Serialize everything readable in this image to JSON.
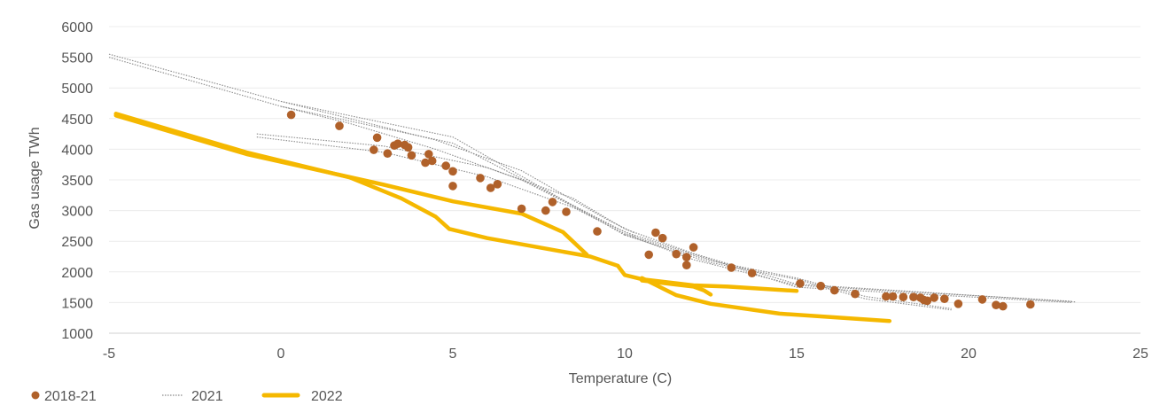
{
  "chart_data": {
    "type": "scatter",
    "title": "",
    "xlabel": "Temperature  (C)",
    "ylabel": "Gas usage TWh",
    "xlim": [
      -5,
      25
    ],
    "ylim": [
      1000,
      6000
    ],
    "x_ticks": [
      "-5",
      "0",
      "5",
      "10",
      "15",
      "20",
      "25"
    ],
    "y_ticks": [
      "1000",
      "1500",
      "2000",
      "2500",
      "3000",
      "3500",
      "4000",
      "4500",
      "5000",
      "5500",
      "6000"
    ],
    "grid": "horizontal",
    "legend_position": "bottom-left",
    "series": [
      {
        "name": "2018-21",
        "kind": "points",
        "color": "#b0612a",
        "points": [
          [
            0.3,
            4560
          ],
          [
            1.7,
            4380
          ],
          [
            2.7,
            3990
          ],
          [
            2.8,
            4190
          ],
          [
            3.1,
            3930
          ],
          [
            3.3,
            4060
          ],
          [
            3.4,
            4090
          ],
          [
            3.6,
            4070
          ],
          [
            3.7,
            4030
          ],
          [
            3.8,
            3900
          ],
          [
            4.2,
            3780
          ],
          [
            4.3,
            3920
          ],
          [
            4.4,
            3810
          ],
          [
            4.8,
            3730
          ],
          [
            5.0,
            3640
          ],
          [
            5.0,
            3400
          ],
          [
            5.8,
            3530
          ],
          [
            6.1,
            3370
          ],
          [
            6.3,
            3430
          ],
          [
            7.0,
            3030
          ],
          [
            7.7,
            3000
          ],
          [
            7.9,
            3140
          ],
          [
            8.3,
            2980
          ],
          [
            9.2,
            2660
          ],
          [
            10.7,
            2280
          ],
          [
            10.9,
            2640
          ],
          [
            11.1,
            2550
          ],
          [
            11.5,
            2290
          ],
          [
            11.8,
            2110
          ],
          [
            11.8,
            2240
          ],
          [
            12.0,
            2400
          ],
          [
            13.1,
            2070
          ],
          [
            13.7,
            1980
          ],
          [
            15.1,
            1810
          ],
          [
            15.7,
            1770
          ],
          [
            16.1,
            1700
          ],
          [
            16.7,
            1640
          ],
          [
            17.6,
            1600
          ],
          [
            17.8,
            1600
          ],
          [
            18.1,
            1590
          ],
          [
            18.4,
            1590
          ],
          [
            18.6,
            1580
          ],
          [
            18.7,
            1540
          ],
          [
            18.8,
            1530
          ],
          [
            19.0,
            1580
          ],
          [
            19.3,
            1560
          ],
          [
            19.7,
            1480
          ],
          [
            20.4,
            1550
          ],
          [
            20.8,
            1460
          ],
          [
            21.0,
            1440
          ],
          [
            21.8,
            1470
          ]
        ]
      },
      {
        "name": "2021",
        "kind": "dotted-lines",
        "color": "#8a8a8a",
        "lines": [
          [
            [
              -5,
              5550
            ],
            [
              0,
              4780
            ],
            [
              5,
              4200
            ],
            [
              10,
              2600
            ]
          ],
          [
            [
              -5,
              5500
            ],
            [
              0,
              4700
            ],
            [
              5,
              4100
            ],
            [
              10,
              2650
            ],
            [
              15,
              1750
            ],
            [
              23,
              1500
            ]
          ],
          [
            [
              -0.7,
              4250
            ],
            [
              3,
              4050
            ],
            [
              6,
              3700
            ],
            [
              8.5,
              3200
            ],
            [
              10,
              2700
            ],
            [
              12,
              2300
            ],
            [
              15,
              1800
            ],
            [
              23.1,
              1510
            ]
          ],
          [
            [
              -0.7,
              4200
            ],
            [
              3,
              3950
            ],
            [
              6,
              3550
            ],
            [
              8.5,
              3050
            ],
            [
              10,
              2620
            ],
            [
              12,
              2200
            ],
            [
              15,
              1780
            ],
            [
              23,
              1520
            ]
          ],
          [
            [
              0,
              4780
            ],
            [
              2,
              4500
            ],
            [
              4.5,
              4150
            ],
            [
              7,
              3650
            ],
            [
              9.5,
              2850
            ],
            [
              10.3,
              2630
            ]
          ],
          [
            [
              0,
              4700
            ],
            [
              2,
              4420
            ],
            [
              4.5,
              4000
            ],
            [
              7,
              3500
            ],
            [
              9.5,
              2780
            ],
            [
              10.3,
              2580
            ]
          ],
          [
            [
              10,
              2620
            ],
            [
              12.5,
              2180
            ],
            [
              15,
              1900
            ],
            [
              17,
              1600
            ],
            [
              19.5,
              1400
            ]
          ],
          [
            [
              10,
              2600
            ],
            [
              12.5,
              2150
            ],
            [
              15,
              1880
            ],
            [
              17,
              1560
            ],
            [
              19.5,
              1380
            ]
          ]
        ]
      },
      {
        "name": "2022",
        "kind": "lines",
        "color": "#f5b800",
        "lines": [
          [
            [
              -4.8,
              4580
            ],
            [
              -1,
              3950
            ],
            [
              2,
              3540
            ],
            [
              3.5,
              3200
            ],
            [
              4.5,
              2900
            ],
            [
              4.9,
              2700
            ],
            [
              6,
              2550
            ],
            [
              9,
              2250
            ],
            [
              9.8,
              2100
            ],
            [
              10,
              1950
            ],
            [
              10.5,
              1880
            ],
            [
              12,
              1780
            ],
            [
              13,
              1760
            ],
            [
              15,
              1690
            ]
          ],
          [
            [
              -4.8,
              4550
            ],
            [
              -1,
              3920
            ],
            [
              3,
              3420
            ],
            [
              5,
              3150
            ],
            [
              7,
              2950
            ],
            [
              8.2,
              2650
            ],
            [
              8.9,
              2280
            ]
          ],
          [
            [
              10.5,
              1900
            ],
            [
              11.5,
              1620
            ],
            [
              12.5,
              1480
            ],
            [
              14.5,
              1320
            ],
            [
              17.7,
              1200
            ]
          ],
          [
            [
              10.5,
              1860
            ],
            [
              12,
              1760
            ],
            [
              12.3,
              1700
            ],
            [
              12.5,
              1630
            ]
          ]
        ]
      }
    ]
  }
}
